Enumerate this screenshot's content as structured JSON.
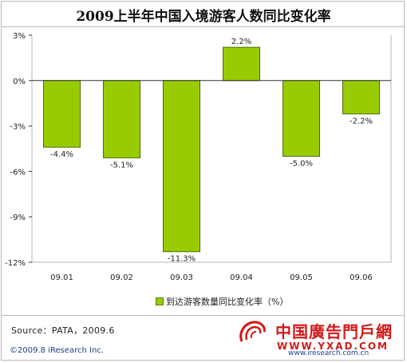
{
  "title": "2009上半年中国入境游客人数同比变化率",
  "chart_data": {
    "type": "bar",
    "title": "2009上半年中国入境游客人数同比变化率",
    "categories": [
      "09.01",
      "09.02",
      "09.03",
      "09.04",
      "09.05",
      "09.06"
    ],
    "series": [
      {
        "name": "到达游客数量同比变化率（%）",
        "values": [
          -4.4,
          -5.1,
          -11.3,
          2.2,
          -5.0,
          -2.2
        ],
        "labels": [
          "-4.4%",
          "-5.1%",
          "-11.3%",
          "2.2%",
          "-5.0%",
          "-2.2%"
        ]
      }
    ],
    "yticks": [
      3,
      0,
      -3,
      -6,
      -9,
      -12
    ],
    "ytick_labels": [
      "3%",
      "0%",
      "-3%",
      "-6%",
      "-9%",
      "-12%"
    ],
    "ylim": [
      -12,
      3
    ],
    "xlabel": "",
    "ylabel": "",
    "grid": false,
    "legend_position": "bottom",
    "colors": {
      "bar_fill": "#99cc00",
      "bar_edge": "#4a6b00",
      "axis": "#333333",
      "text": "#222222"
    }
  },
  "legend": {
    "label": "到达游客数量同比变化率（%）"
  },
  "source": "Source：PATA，2009.6",
  "copyright": "©2009.8 iResearch Inc.",
  "watermark": {
    "name": "中国廣告門戶網",
    "url": "WWW.YXAD.COM",
    "url2": "www.iresearch.com.cn"
  }
}
